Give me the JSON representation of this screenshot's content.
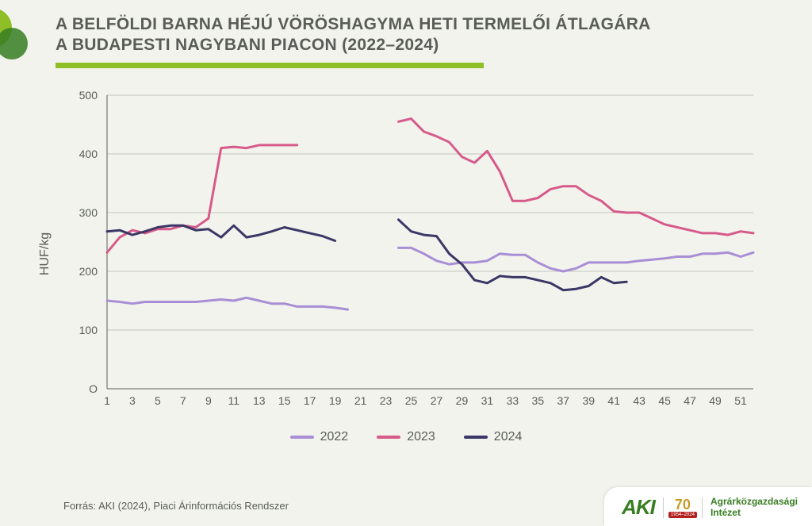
{
  "title_line1": "A BELFÖLDI BARNA HÉJÚ VÖRÖSHAGYMA HETI TERMELŐI ÁTLAGÁRA",
  "title_line2": "A BUDAPESTI NAGYBANI PIACON (2022–2024)",
  "y_axis_label": "HUF/kg",
  "source": "Forrás: AKI (2024), Piaci Árinformációs Rendszer",
  "logo": {
    "brand": "AKI",
    "anniversary": "70",
    "years": "1954–2024",
    "inst_line1": "Agrárközgazdasági",
    "inst_line2": "Intézet"
  },
  "legend": [
    {
      "label": "2022",
      "color": "#a98ed6"
    },
    {
      "label": "2023",
      "color": "#d65a8a"
    },
    {
      "label": "2024",
      "color": "#3b3766"
    }
  ],
  "chart": {
    "type": "line",
    "background_color": "#f2f3ed",
    "grid_color": "#c4c6bf",
    "axis_color": "#5a5d57",
    "label_color": "#5a5d57",
    "label_fontsize": 15,
    "tick_fontsize": 14,
    "line_width": 3,
    "xlim": [
      1,
      52
    ],
    "ylim": [
      0,
      500
    ],
    "ytick_step": 100,
    "xticks": [
      1,
      3,
      5,
      7,
      9,
      11,
      13,
      15,
      17,
      19,
      21,
      23,
      25,
      27,
      29,
      31,
      33,
      35,
      37,
      39,
      41,
      43,
      45,
      47,
      49,
      51
    ],
    "series": [
      {
        "name": "2022",
        "color": "#a98ed6",
        "segments": [
          {
            "x": [
              1,
              2,
              3,
              4,
              5,
              6,
              7,
              8,
              9,
              10,
              11,
              12,
              13,
              14,
              15,
              16,
              17,
              18,
              19,
              20
            ],
            "y": [
              150,
              148,
              145,
              148,
              148,
              148,
              148,
              148,
              150,
              152,
              150,
              155,
              150,
              145,
              145,
              140,
              140,
              140,
              138,
              135
            ]
          },
          {
            "x": [
              24,
              25,
              26,
              27,
              28,
              29,
              30,
              31,
              32,
              33,
              34,
              35,
              36,
              37,
              38,
              39,
              40,
              41,
              42,
              43,
              44,
              45,
              46,
              47,
              48,
              49,
              50,
              51,
              52
            ],
            "y": [
              240,
              240,
              230,
              218,
              212,
              215,
              215,
              218,
              230,
              228,
              228,
              215,
              205,
              200,
              205,
              215,
              215,
              215,
              215,
              218,
              220,
              222,
              225,
              225,
              230,
              230,
              232,
              225,
              232
            ]
          }
        ]
      },
      {
        "name": "2023",
        "color": "#d65a8a",
        "segments": [
          {
            "x": [
              1,
              2,
              3,
              4,
              5,
              6,
              7,
              8,
              9,
              10,
              11,
              12,
              13,
              14,
              15,
              16
            ],
            "y": [
              232,
              258,
              270,
              265,
              272,
              272,
              278,
              275,
              290,
              410,
              412,
              410,
              415,
              415,
              415,
              415
            ]
          },
          {
            "x": [
              24,
              25,
              26,
              27,
              28,
              29,
              30,
              31,
              32,
              33,
              34,
              35,
              36,
              37,
              38,
              39,
              40,
              41,
              42,
              43,
              44,
              45,
              46,
              47,
              48,
              49,
              50,
              51,
              52
            ],
            "y": [
              455,
              460,
              438,
              430,
              420,
              395,
              385,
              405,
              370,
              320,
              320,
              325,
              340,
              345,
              345,
              330,
              320,
              302,
              300,
              300,
              290,
              280,
              275,
              270,
              265,
              265,
              262,
              268,
              265
            ]
          }
        ]
      },
      {
        "name": "2024",
        "color": "#3b3766",
        "segments": [
          {
            "x": [
              1,
              2,
              3,
              4,
              5,
              6,
              7,
              8,
              9,
              10,
              11,
              12,
              13,
              14,
              15,
              16,
              17,
              18,
              19
            ],
            "y": [
              268,
              270,
              262,
              268,
              275,
              278,
              278,
              270,
              272,
              258,
              278,
              258,
              262,
              268,
              275,
              270,
              265,
              260,
              252
            ]
          },
          {
            "x": [
              24,
              25,
              26,
              27,
              28,
              29,
              30,
              31,
              32,
              33,
              34,
              35,
              36,
              37,
              38,
              39,
              40,
              41,
              42
            ],
            "y": [
              288,
              268,
              262,
              260,
              230,
              212,
              185,
              180,
              192,
              190,
              190,
              185,
              180,
              168,
              170,
              175,
              190,
              180,
              182
            ]
          }
        ]
      }
    ]
  }
}
